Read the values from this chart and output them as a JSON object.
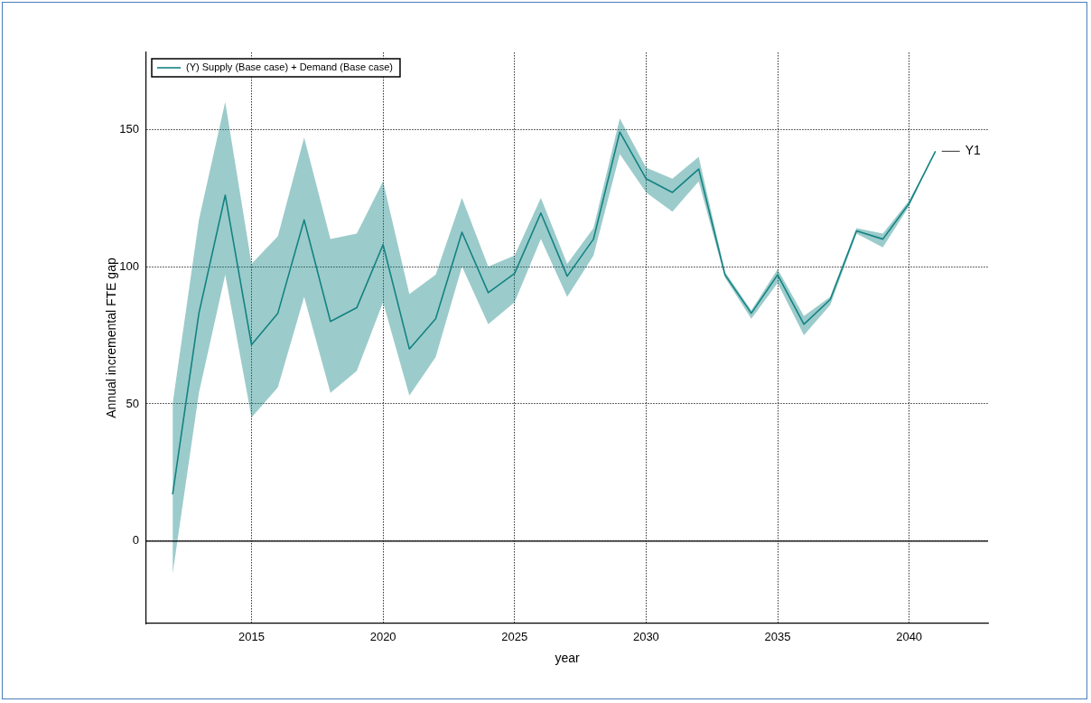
{
  "chart_data": {
    "type": "line",
    "xlabel": "year",
    "ylabel": "Annual incremental FTE gap",
    "x": [
      2012,
      2013,
      2014,
      2015,
      2016,
      2017,
      2018,
      2019,
      2020,
      2021,
      2022,
      2023,
      2024,
      2025,
      2026,
      2027,
      2028,
      2029,
      2030,
      2031,
      2032,
      2033,
      2034,
      2035,
      2036,
      2037,
      2038,
      2039,
      2040,
      2041
    ],
    "series": [
      {
        "name": "(Y) Supply (Base case) + Demand (Base case)",
        "color": "#148282",
        "values": [
          17,
          83,
          126,
          71.5,
          83,
          117,
          80,
          85,
          108,
          70,
          81,
          112.5,
          90.5,
          97.5,
          119.5,
          96.5,
          110,
          149,
          132,
          127,
          135.5,
          97,
          83,
          97,
          79,
          88,
          113,
          110,
          123,
          142
        ],
        "lower": [
          -12,
          54,
          97,
          45,
          56,
          89,
          54,
          62,
          87,
          53,
          67,
          100,
          79,
          87,
          110,
          89,
          104,
          141,
          127,
          120,
          131,
          96,
          81,
          94,
          75,
          86,
          112,
          107,
          122,
          142
        ],
        "upper": [
          50,
          117,
          160,
          101,
          111,
          147,
          110,
          112,
          131,
          90,
          97,
          125,
          100,
          104,
          125,
          101,
          114,
          154,
          136,
          132,
          140,
          98,
          84,
          99,
          82,
          89,
          114,
          112,
          124,
          142
        ]
      }
    ],
    "xlim": [
      2011,
      2043
    ],
    "ylim": [
      -30,
      178
    ],
    "xticks": [
      2015,
      2020,
      2025,
      2030,
      2035,
      2040
    ],
    "yticks": [
      0,
      50,
      100,
      150
    ],
    "grid": true,
    "legend": "top left",
    "marker": "none",
    "line_style": "solid",
    "ref_lines": [
      {
        "axis": "y",
        "value": 0,
        "color": "#000000"
      }
    ],
    "annotations": [
      {
        "text": "Y1",
        "x": 2041,
        "y": 142
      }
    ]
  }
}
